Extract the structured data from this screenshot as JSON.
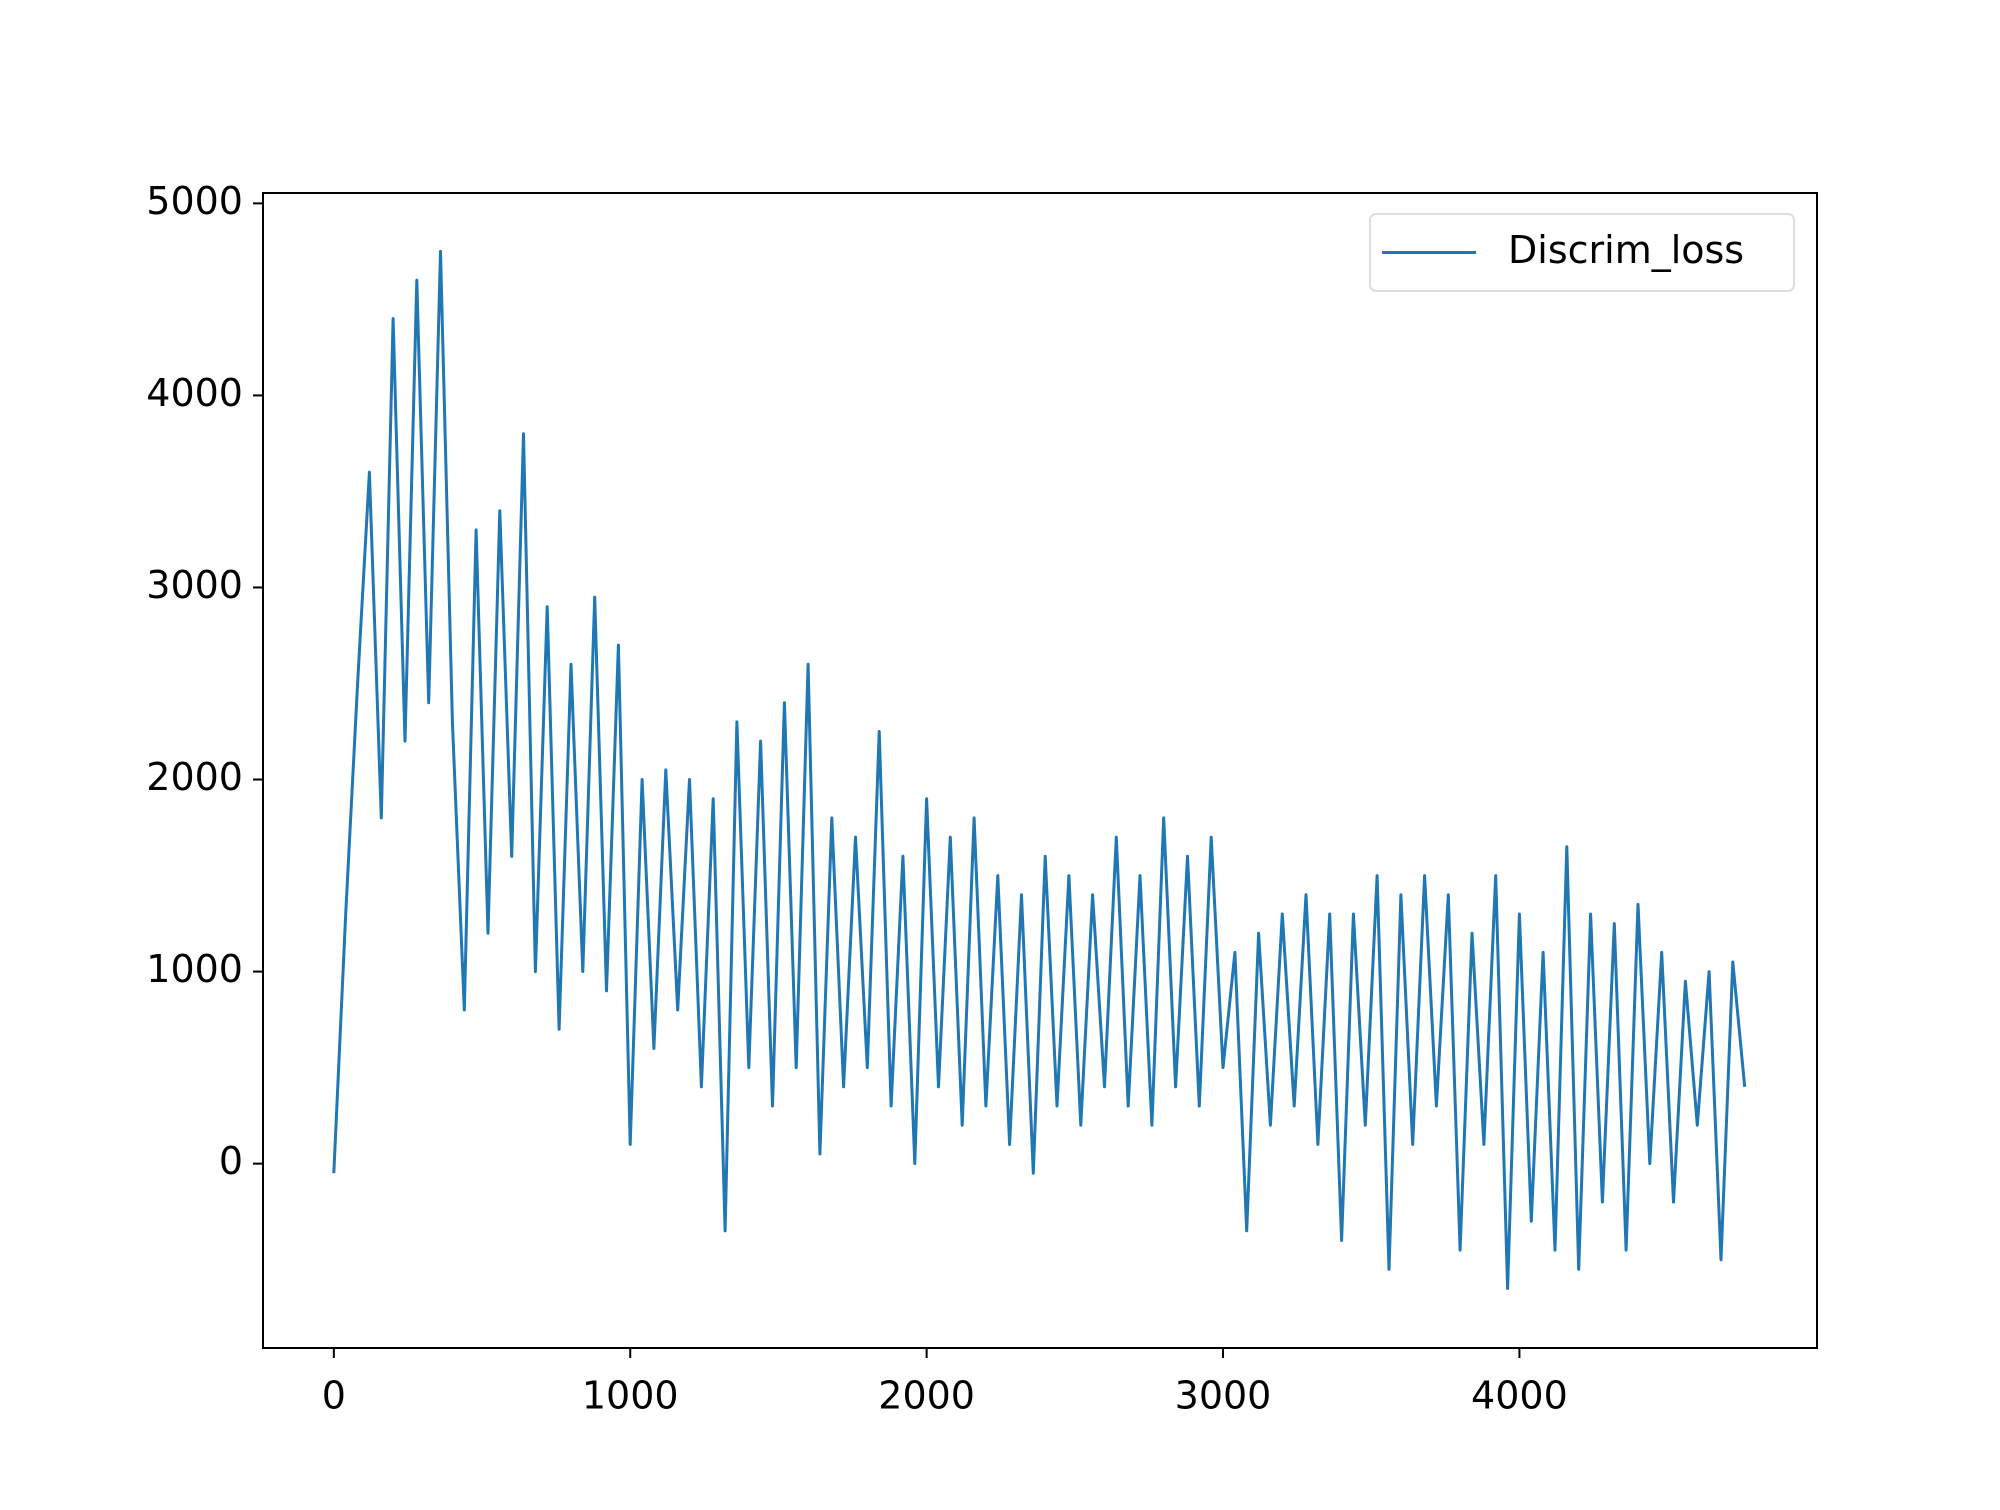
{
  "chart_data": {
    "type": "line",
    "x": [
      0,
      40,
      80,
      120,
      160,
      200,
      240,
      280,
      320,
      360,
      400,
      440,
      480,
      520,
      560,
      600,
      640,
      680,
      720,
      760,
      800,
      840,
      880,
      920,
      960,
      1000,
      1040,
      1080,
      1120,
      1160,
      1200,
      1240,
      1280,
      1320,
      1360,
      1400,
      1440,
      1480,
      1520,
      1560,
      1600,
      1640,
      1680,
      1720,
      1760,
      1800,
      1840,
      1880,
      1920,
      1960,
      2000,
      2040,
      2080,
      2120,
      2160,
      2200,
      2240,
      2280,
      2320,
      2360,
      2400,
      2440,
      2480,
      2520,
      2560,
      2600,
      2640,
      2680,
      2720,
      2760,
      2800,
      2840,
      2880,
      2920,
      2960,
      3000,
      3040,
      3080,
      3120,
      3160,
      3200,
      3240,
      3280,
      3320,
      3360,
      3400,
      3440,
      3480,
      3520,
      3560,
      3600,
      3640,
      3680,
      3720,
      3760,
      3800,
      3840,
      3880,
      3920,
      3960,
      4000,
      4040,
      4080,
      4120,
      4160,
      4200,
      4240,
      4280,
      4320,
      4360,
      4400,
      4440,
      4480,
      4520,
      4560,
      4600,
      4640,
      4680,
      4720,
      4760
    ],
    "series": [
      {
        "name": "Discrim_loss",
        "color": "#1f77b4",
        "values": [
          -50,
          1300,
          2500,
          3600,
          1800,
          4400,
          2200,
          4600,
          2400,
          4750,
          2300,
          800,
          3300,
          1200,
          3400,
          1600,
          3800,
          1000,
          2900,
          700,
          2600,
          1000,
          2950,
          900,
          2700,
          100,
          2000,
          600,
          2050,
          800,
          2000,
          400,
          1900,
          -350,
          2300,
          500,
          2200,
          300,
          2400,
          500,
          2600,
          50,
          1800,
          400,
          1700,
          500,
          2250,
          300,
          1600,
          0,
          1900,
          400,
          1700,
          200,
          1800,
          300,
          1500,
          100,
          1400,
          -50,
          1600,
          300,
          1500,
          200,
          1400,
          400,
          1700,
          300,
          1500,
          200,
          1800,
          400,
          1600,
          300,
          1700,
          500,
          1100,
          -350,
          1200,
          200,
          1300,
          300,
          1400,
          100,
          1300,
          -400,
          1300,
          200,
          1500,
          -550,
          1400,
          100,
          1500,
          300,
          1400,
          -450,
          1200,
          100,
          1500,
          -650,
          1300,
          -300,
          1100,
          -450,
          1650,
          -550,
          1300,
          -200,
          1250,
          -450,
          1350,
          0,
          1100,
          -200,
          950,
          200,
          1000,
          -500,
          1050,
          400
        ]
      }
    ],
    "xlim": [
      -239,
      5004
    ],
    "ylim": [
      -960,
      5054
    ],
    "xticks": [
      0,
      1000,
      2000,
      3000,
      4000
    ],
    "yticks": [
      0,
      1000,
      2000,
      3000,
      4000,
      5000
    ],
    "legend": "upper right",
    "grid": false
  }
}
